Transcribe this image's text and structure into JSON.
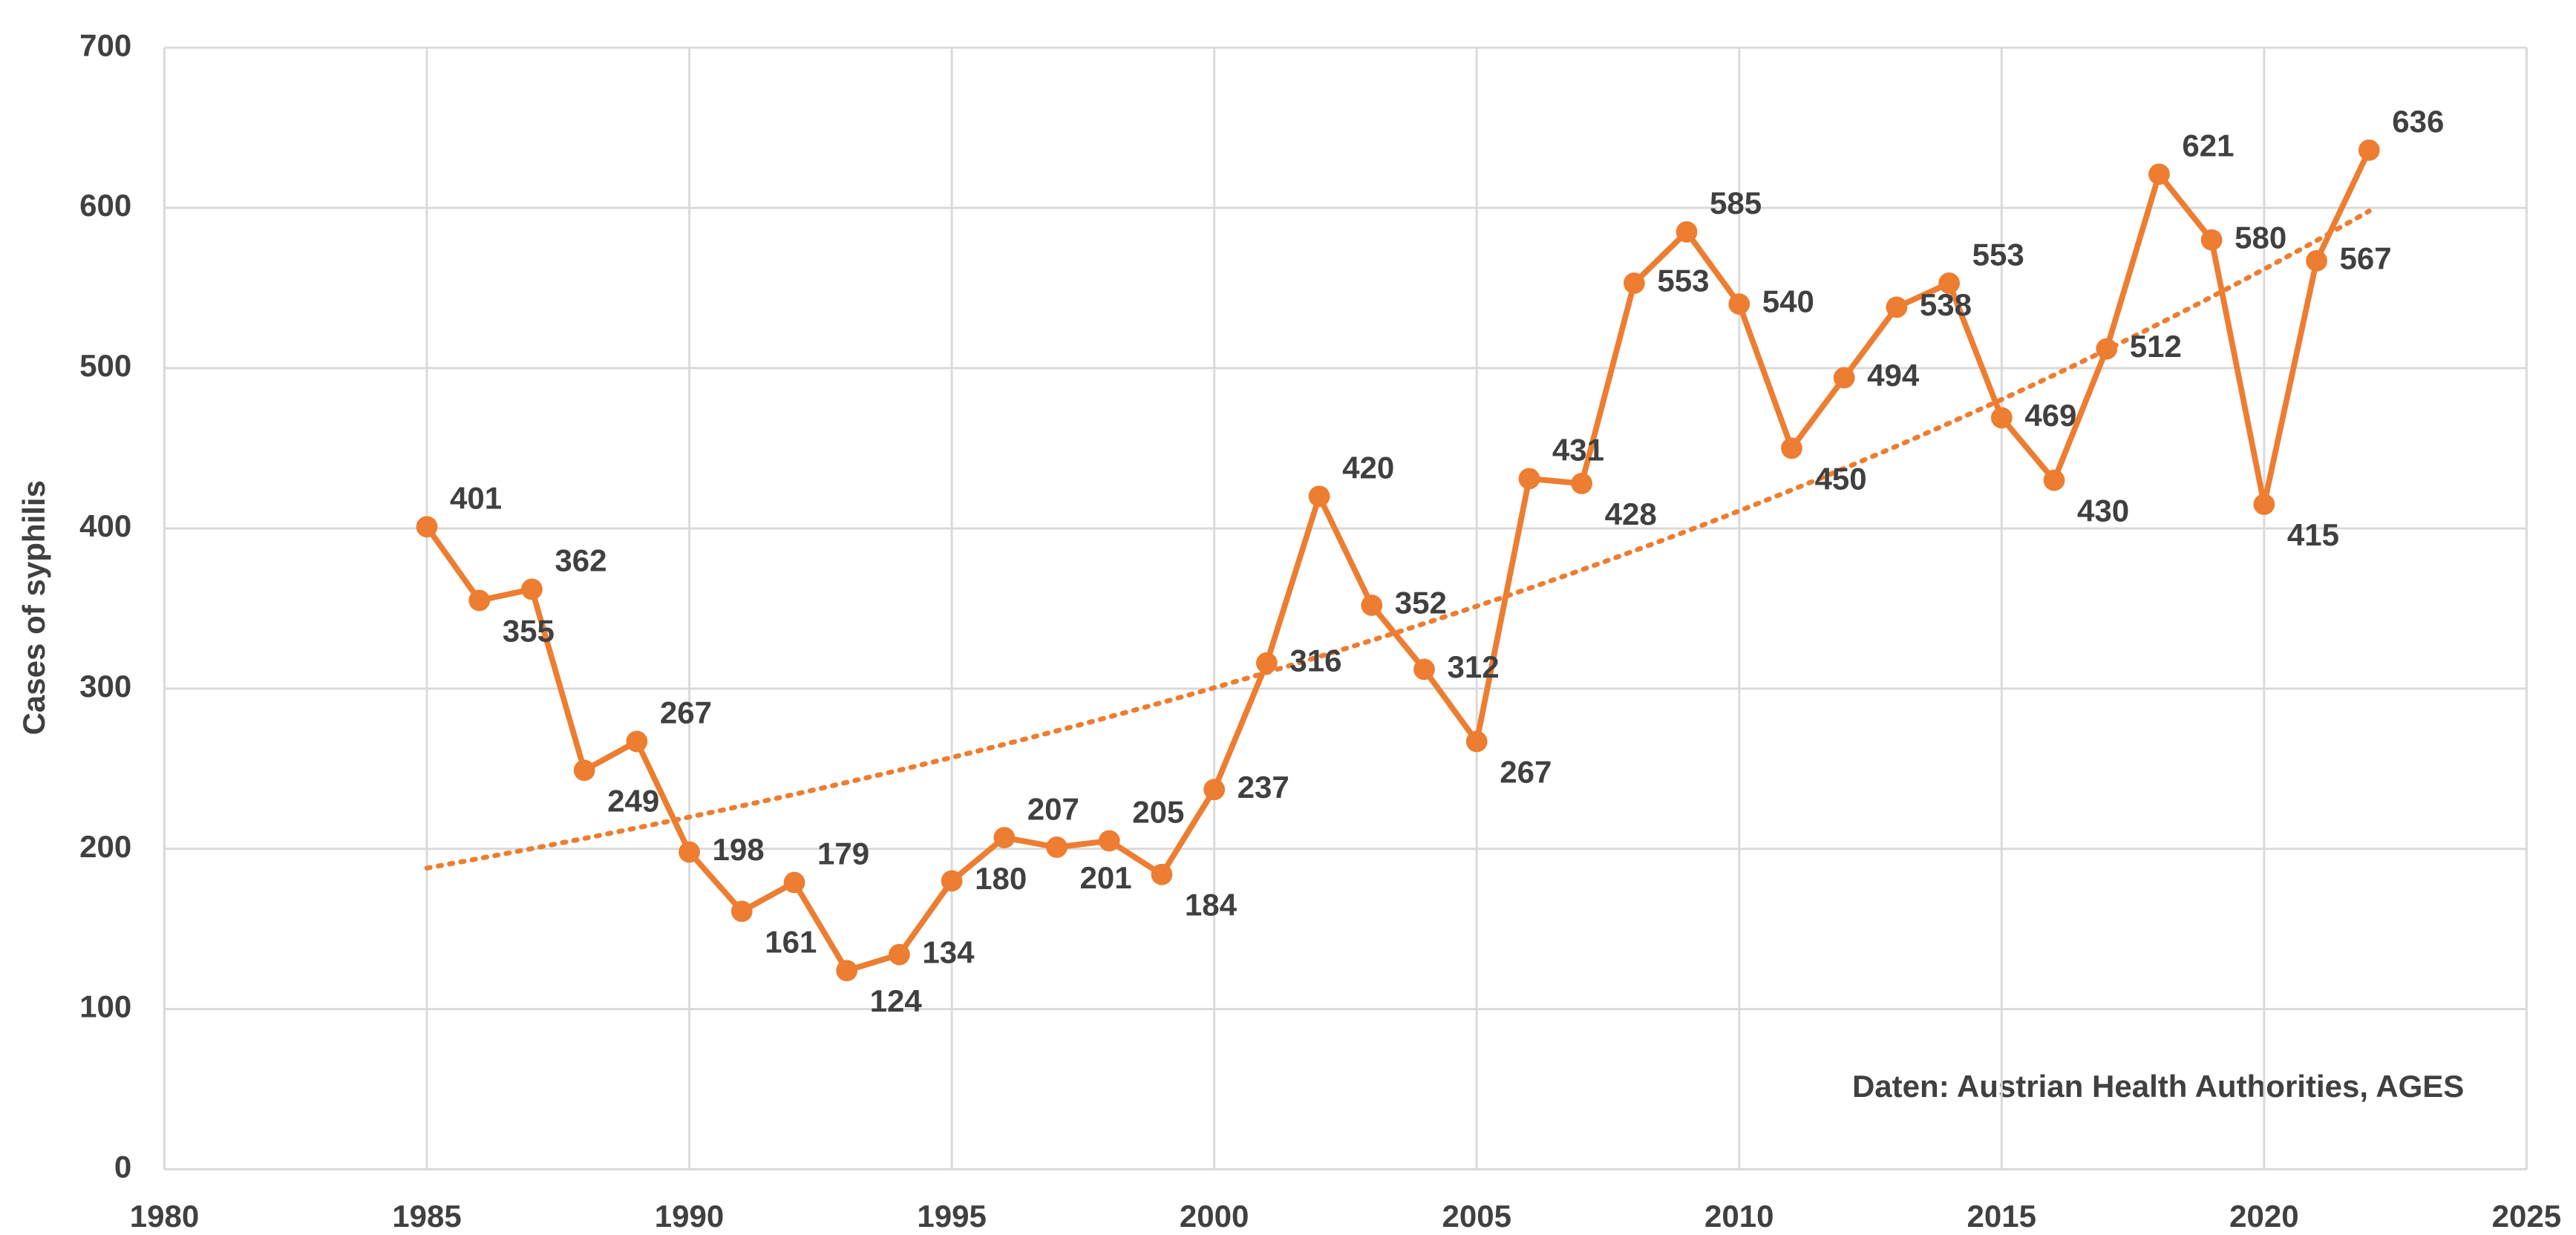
{
  "chart_data": {
    "type": "line",
    "y_label": "Cases of syphilis",
    "annotation": "Daten: Austrian Health Authorities, AGES",
    "x": [
      1985,
      1986,
      1987,
      1988,
      1989,
      1990,
      1991,
      1992,
      1993,
      1994,
      1995,
      1996,
      1997,
      1998,
      1999,
      2000,
      2001,
      2002,
      2003,
      2004,
      2005,
      2006,
      2007,
      2008,
      2009,
      2010,
      2011,
      2012,
      2013,
      2014,
      2015,
      2016,
      2017,
      2018,
      2019,
      2020,
      2021,
      2022
    ],
    "series": [
      {
        "color": "#ED7D31",
        "values": [
          401,
          355,
          362,
          249,
          267,
          198,
          161,
          179,
          124,
          134,
          180,
          207,
          201,
          205,
          184,
          237,
          316,
          420,
          352,
          312,
          267,
          431,
          428,
          553,
          585,
          540,
          450,
          494,
          538,
          553,
          469,
          430,
          512,
          621,
          580,
          415,
          567,
          636
        ]
      }
    ],
    "trendline": {
      "model": "exponential",
      "x": [
        1985,
        2022
      ],
      "values": [
        188,
        598
      ],
      "color": "#ED7D31"
    },
    "xlim": [
      1980,
      2025
    ],
    "xticks": [
      1980,
      1985,
      1990,
      1995,
      2000,
      2005,
      2010,
      2015,
      2020,
      2025
    ],
    "ylim": [
      0,
      700
    ],
    "yticks": [
      0,
      100,
      200,
      300,
      400,
      500,
      600,
      700
    ],
    "grid": true
  }
}
